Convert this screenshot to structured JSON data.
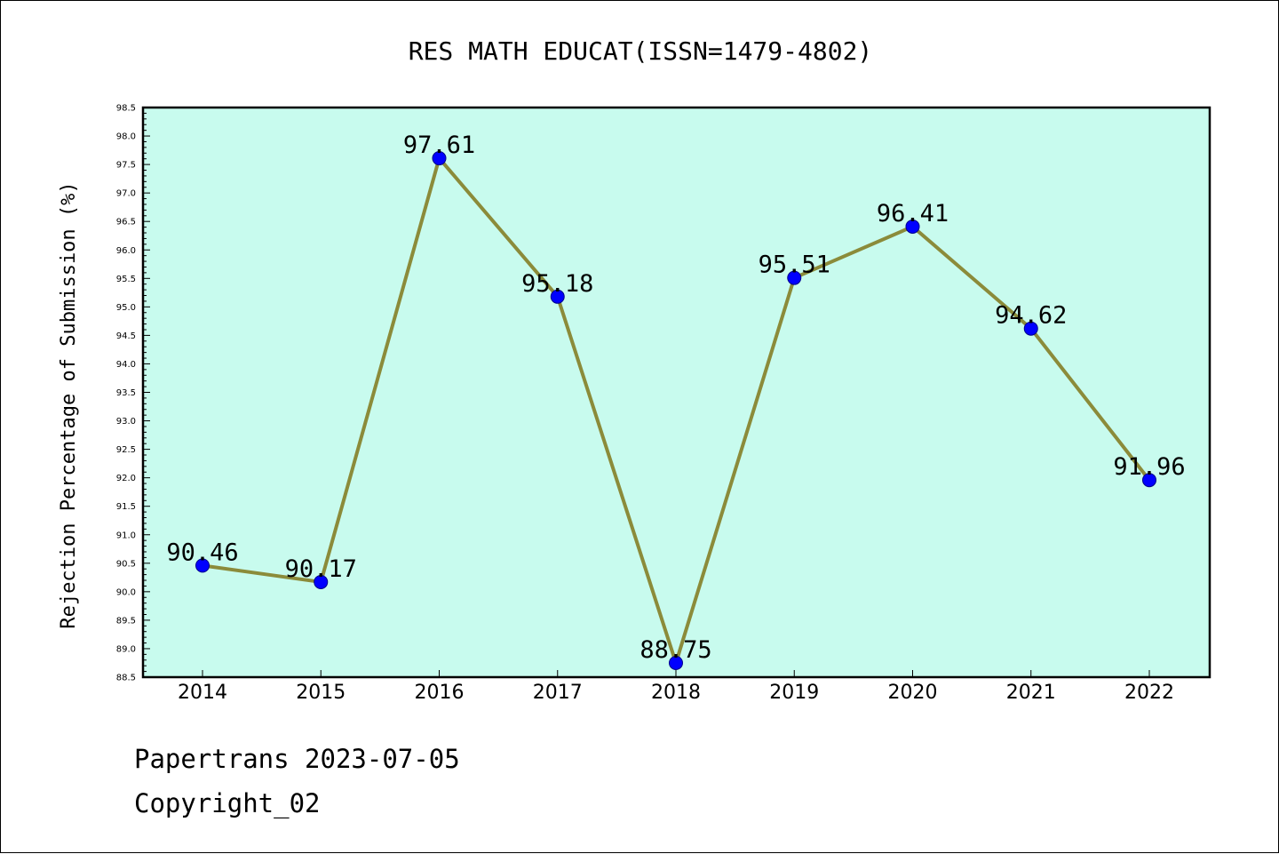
{
  "chart_data": {
    "type": "line",
    "title": "RES MATH EDUCAT(ISSN=1479-4802)",
    "xlabel": "",
    "ylabel": "Rejection Percentage of Submission (%)",
    "categories": [
      "2014",
      "2015",
      "2016",
      "2017",
      "2018",
      "2019",
      "2020",
      "2021",
      "2022"
    ],
    "series": [
      {
        "values": [
          90.46,
          90.17,
          97.61,
          95.18,
          88.75,
          95.51,
          96.41,
          94.62,
          91.96
        ]
      }
    ],
    "data_labels": [
      "90.46",
      "90.17",
      "97.61",
      "95.18",
      "88.75",
      "95.51",
      "96.41",
      "94.62",
      "91.96"
    ],
    "ylim": [
      88.5,
      98.5
    ],
    "yticks": [
      "88.5",
      "89.0",
      "89.5",
      "90.0",
      "90.5",
      "91.0",
      "91.5",
      "92.0",
      "92.5",
      "93.0",
      "93.5",
      "94.0",
      "94.5",
      "95.0",
      "95.5",
      "96.0",
      "96.5",
      "97.0",
      "97.5",
      "98.0",
      "98.5"
    ],
    "grid": false,
    "colors": {
      "plot_background": "#c8fbee",
      "line": "#8b8b3a",
      "marker": "#0000ff"
    }
  },
  "footer": {
    "source": "Papertrans 2023-07-05",
    "copyright": "Copyright_02"
  }
}
